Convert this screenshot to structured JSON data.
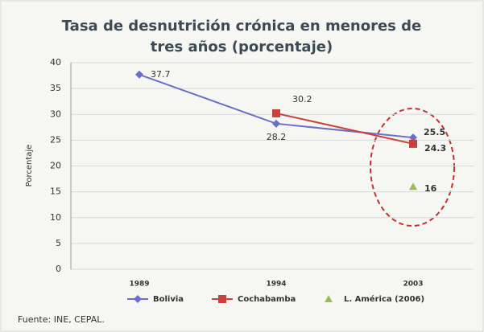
{
  "chart_data": {
    "type": "line",
    "title": "Tasa de desnutrición crónica en menores de tres años (porcentaje)",
    "y_label": "Porcentaje",
    "categories": [
      "1989",
      "1994",
      "2003"
    ],
    "series": [
      {
        "name": "Bolivia",
        "color": "#6a6fc8",
        "marker": "diamond",
        "line": true,
        "values": [
          37.7,
          28.2,
          25.5
        ]
      },
      {
        "name": "Cochabamba",
        "color": "#c9403c",
        "marker": "square",
        "line": true,
        "values": [
          null,
          30.2,
          24.3
        ]
      },
      {
        "name": "L. América (2006)",
        "color": "#9bbb59",
        "marker": "triangle",
        "line": false,
        "values": [
          null,
          null,
          16
        ]
      }
    ],
    "ylim": [
      0,
      40
    ],
    "yticks": [
      0,
      5,
      10,
      15,
      20,
      25,
      30,
      35,
      40
    ],
    "grid": true,
    "source": "Fuente: INE, CEPAL."
  }
}
